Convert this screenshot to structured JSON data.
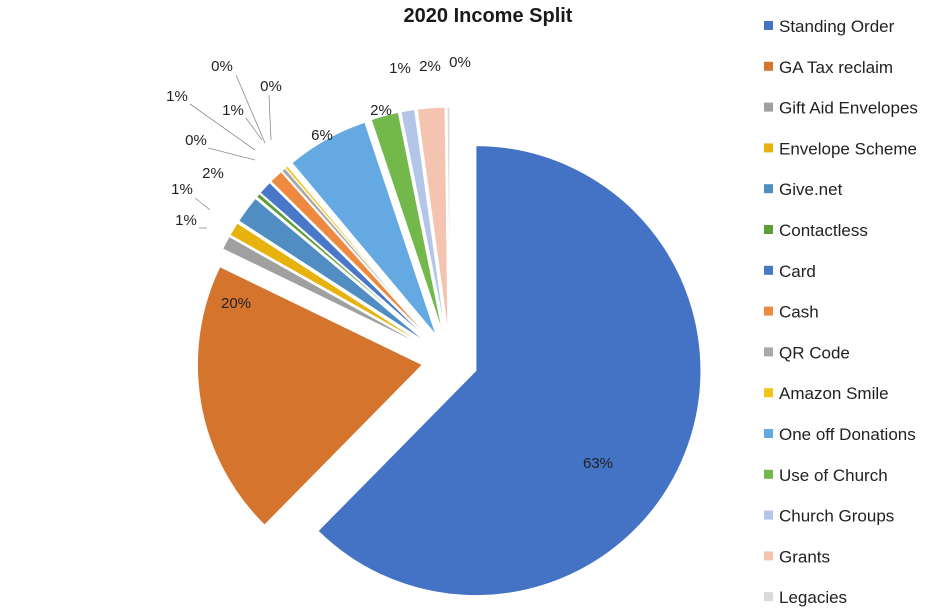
{
  "chart_data": {
    "type": "pie",
    "title": "2020 Income Split",
    "legend_position": "right",
    "slices": [
      {
        "label": "Standing Order",
        "value": 63,
        "display": "63%",
        "color": "#4472c4"
      },
      {
        "label": "GA Tax reclaim",
        "value": 20,
        "display": "20%",
        "color": "#d5742d"
      },
      {
        "label": "Gift Aid Envelopes",
        "value": 1,
        "display": "1%",
        "color": "#a0a0a0"
      },
      {
        "label": "Envelope Scheme",
        "value": 1,
        "display": "1%",
        "color": "#e8b20c"
      },
      {
        "label": "Give.net",
        "value": 2,
        "display": "2%",
        "color": "#4f8dc3"
      },
      {
        "label": "Contactless",
        "value": 0.3,
        "display": "0%",
        "color": "#5e9e3a"
      },
      {
        "label": "Card",
        "value": 1,
        "display": "1%",
        "color": "#4a78c8"
      },
      {
        "label": "Cash",
        "value": 1,
        "display": "1%",
        "color": "#ed8a3f"
      },
      {
        "label": "QR Code",
        "value": 0.3,
        "display": "0%",
        "color": "#a9a9a9"
      },
      {
        "label": "Amazon Smile",
        "value": 0.2,
        "display": "0%",
        "color": "#f2c31a"
      },
      {
        "label": "One off Donations",
        "value": 6,
        "display": "6%",
        "color": "#65a9e3"
      },
      {
        "label": "Use of Church",
        "value": 2,
        "display": "2%",
        "color": "#73b84a"
      },
      {
        "label": "Church Groups",
        "value": 1,
        "display": "1%",
        "color": "#b4c6e8"
      },
      {
        "label": "Grants",
        "value": 2,
        "display": "2%",
        "color": "#f4c4b0"
      },
      {
        "label": "Legacies",
        "value": 0.2,
        "display": "0%",
        "color": "#d9d9d9"
      }
    ]
  }
}
